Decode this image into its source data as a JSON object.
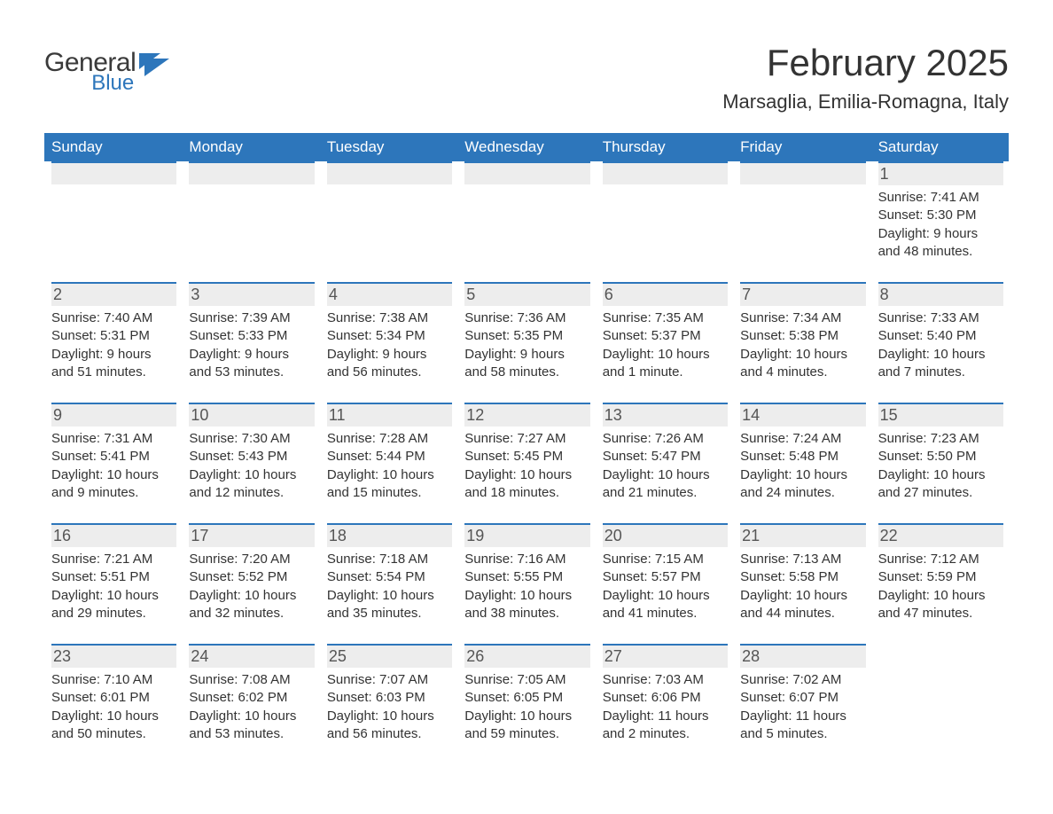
{
  "brand": {
    "word1": "General",
    "word2": "Blue",
    "word1_color": "#3a3a3a",
    "word2_color": "#2d76bb"
  },
  "title": "February 2025",
  "location": "Marsaglia, Emilia-Romagna, Italy",
  "colors": {
    "header_bg": "#2d76bb",
    "header_text": "#ffffff",
    "daybar_bg": "#ededed",
    "daybar_border": "#2d76bb",
    "body_text": "#333333"
  },
  "day_headers": [
    "Sunday",
    "Monday",
    "Tuesday",
    "Wednesday",
    "Thursday",
    "Friday",
    "Saturday"
  ],
  "weeks": [
    [
      {
        "blank": true
      },
      {
        "blank": true
      },
      {
        "blank": true
      },
      {
        "blank": true
      },
      {
        "blank": true
      },
      {
        "blank": true
      },
      {
        "n": "1",
        "sunrise": "Sunrise: 7:41 AM",
        "sunset": "Sunset: 5:30 PM",
        "dl1": "Daylight: 9 hours",
        "dl2": "and 48 minutes."
      }
    ],
    [
      {
        "n": "2",
        "sunrise": "Sunrise: 7:40 AM",
        "sunset": "Sunset: 5:31 PM",
        "dl1": "Daylight: 9 hours",
        "dl2": "and 51 minutes."
      },
      {
        "n": "3",
        "sunrise": "Sunrise: 7:39 AM",
        "sunset": "Sunset: 5:33 PM",
        "dl1": "Daylight: 9 hours",
        "dl2": "and 53 minutes."
      },
      {
        "n": "4",
        "sunrise": "Sunrise: 7:38 AM",
        "sunset": "Sunset: 5:34 PM",
        "dl1": "Daylight: 9 hours",
        "dl2": "and 56 minutes."
      },
      {
        "n": "5",
        "sunrise": "Sunrise: 7:36 AM",
        "sunset": "Sunset: 5:35 PM",
        "dl1": "Daylight: 9 hours",
        "dl2": "and 58 minutes."
      },
      {
        "n": "6",
        "sunrise": "Sunrise: 7:35 AM",
        "sunset": "Sunset: 5:37 PM",
        "dl1": "Daylight: 10 hours",
        "dl2": "and 1 minute."
      },
      {
        "n": "7",
        "sunrise": "Sunrise: 7:34 AM",
        "sunset": "Sunset: 5:38 PM",
        "dl1": "Daylight: 10 hours",
        "dl2": "and 4 minutes."
      },
      {
        "n": "8",
        "sunrise": "Sunrise: 7:33 AM",
        "sunset": "Sunset: 5:40 PM",
        "dl1": "Daylight: 10 hours",
        "dl2": "and 7 minutes."
      }
    ],
    [
      {
        "n": "9",
        "sunrise": "Sunrise: 7:31 AM",
        "sunset": "Sunset: 5:41 PM",
        "dl1": "Daylight: 10 hours",
        "dl2": "and 9 minutes."
      },
      {
        "n": "10",
        "sunrise": "Sunrise: 7:30 AM",
        "sunset": "Sunset: 5:43 PM",
        "dl1": "Daylight: 10 hours",
        "dl2": "and 12 minutes."
      },
      {
        "n": "11",
        "sunrise": "Sunrise: 7:28 AM",
        "sunset": "Sunset: 5:44 PM",
        "dl1": "Daylight: 10 hours",
        "dl2": "and 15 minutes."
      },
      {
        "n": "12",
        "sunrise": "Sunrise: 7:27 AM",
        "sunset": "Sunset: 5:45 PM",
        "dl1": "Daylight: 10 hours",
        "dl2": "and 18 minutes."
      },
      {
        "n": "13",
        "sunrise": "Sunrise: 7:26 AM",
        "sunset": "Sunset: 5:47 PM",
        "dl1": "Daylight: 10 hours",
        "dl2": "and 21 minutes."
      },
      {
        "n": "14",
        "sunrise": "Sunrise: 7:24 AM",
        "sunset": "Sunset: 5:48 PM",
        "dl1": "Daylight: 10 hours",
        "dl2": "and 24 minutes."
      },
      {
        "n": "15",
        "sunrise": "Sunrise: 7:23 AM",
        "sunset": "Sunset: 5:50 PM",
        "dl1": "Daylight: 10 hours",
        "dl2": "and 27 minutes."
      }
    ],
    [
      {
        "n": "16",
        "sunrise": "Sunrise: 7:21 AM",
        "sunset": "Sunset: 5:51 PM",
        "dl1": "Daylight: 10 hours",
        "dl2": "and 29 minutes."
      },
      {
        "n": "17",
        "sunrise": "Sunrise: 7:20 AM",
        "sunset": "Sunset: 5:52 PM",
        "dl1": "Daylight: 10 hours",
        "dl2": "and 32 minutes."
      },
      {
        "n": "18",
        "sunrise": "Sunrise: 7:18 AM",
        "sunset": "Sunset: 5:54 PM",
        "dl1": "Daylight: 10 hours",
        "dl2": "and 35 minutes."
      },
      {
        "n": "19",
        "sunrise": "Sunrise: 7:16 AM",
        "sunset": "Sunset: 5:55 PM",
        "dl1": "Daylight: 10 hours",
        "dl2": "and 38 minutes."
      },
      {
        "n": "20",
        "sunrise": "Sunrise: 7:15 AM",
        "sunset": "Sunset: 5:57 PM",
        "dl1": "Daylight: 10 hours",
        "dl2": "and 41 minutes."
      },
      {
        "n": "21",
        "sunrise": "Sunrise: 7:13 AM",
        "sunset": "Sunset: 5:58 PM",
        "dl1": "Daylight: 10 hours",
        "dl2": "and 44 minutes."
      },
      {
        "n": "22",
        "sunrise": "Sunrise: 7:12 AM",
        "sunset": "Sunset: 5:59 PM",
        "dl1": "Daylight: 10 hours",
        "dl2": "and 47 minutes."
      }
    ],
    [
      {
        "n": "23",
        "sunrise": "Sunrise: 7:10 AM",
        "sunset": "Sunset: 6:01 PM",
        "dl1": "Daylight: 10 hours",
        "dl2": "and 50 minutes."
      },
      {
        "n": "24",
        "sunrise": "Sunrise: 7:08 AM",
        "sunset": "Sunset: 6:02 PM",
        "dl1": "Daylight: 10 hours",
        "dl2": "and 53 minutes."
      },
      {
        "n": "25",
        "sunrise": "Sunrise: 7:07 AM",
        "sunset": "Sunset: 6:03 PM",
        "dl1": "Daylight: 10 hours",
        "dl2": "and 56 minutes."
      },
      {
        "n": "26",
        "sunrise": "Sunrise: 7:05 AM",
        "sunset": "Sunset: 6:05 PM",
        "dl1": "Daylight: 10 hours",
        "dl2": "and 59 minutes."
      },
      {
        "n": "27",
        "sunrise": "Sunrise: 7:03 AM",
        "sunset": "Sunset: 6:06 PM",
        "dl1": "Daylight: 11 hours",
        "dl2": "and 2 minutes."
      },
      {
        "n": "28",
        "sunrise": "Sunrise: 7:02 AM",
        "sunset": "Sunset: 6:07 PM",
        "dl1": "Daylight: 11 hours",
        "dl2": "and 5 minutes."
      },
      {
        "blank": true,
        "noborder": true
      }
    ]
  ]
}
